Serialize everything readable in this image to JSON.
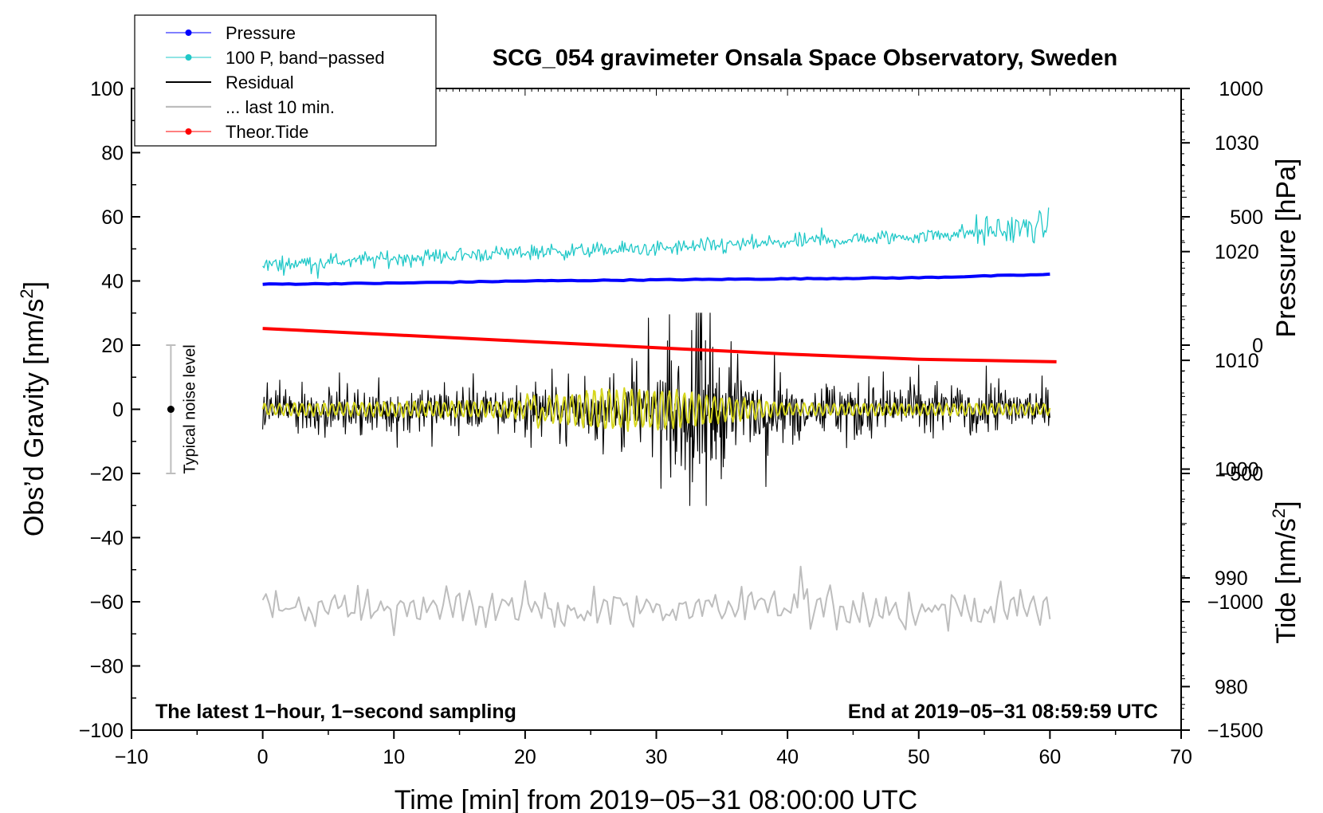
{
  "chart_data": {
    "type": "line",
    "title": "SCG_054 gravimeter Onsala Space Observatory, Sweden",
    "xlabel": "Time [min] from 2019−05−31 08:00:00 UTC",
    "ylabel_left": "Obs'd Gravity [nm/s2]",
    "ylabel_right_pressure": "Pressure [hPa]",
    "ylabel_right_tide": "Tide [nm/s2]",
    "xlim": [
      -10,
      70
    ],
    "ylim": [
      -100,
      100
    ],
    "x_ticks": [
      "−10",
      "0",
      "10",
      "20",
      "30",
      "40",
      "50",
      "60",
      "70"
    ],
    "y_ticks": [
      "−100",
      "−80",
      "−60",
      "−40",
      "−20",
      "0",
      "20",
      "40",
      "60",
      "80",
      "100"
    ],
    "pressure_axis": {
      "range_hPa": [
        976,
        1035
      ],
      "ticks": [
        "980",
        "990",
        "1000",
        "1010",
        "1020",
        "1030"
      ]
    },
    "tide_axis": {
      "range_nms2": [
        -1500,
        1000
      ],
      "ticks": [
        "−1500",
        "−1000",
        "−500",
        "0",
        "500",
        "1000"
      ]
    },
    "legend": {
      "position": "top-left",
      "entries": [
        {
          "label": "Pressure",
          "color": "#0000ff",
          "marker": "dot"
        },
        {
          "label": "100 P, band−passed",
          "color": "#20c8c8",
          "marker": "dot"
        },
        {
          "label": "Residual",
          "color": "#000000",
          "marker": "none"
        },
        {
          "label": "... last 10 min.",
          "color": "#bdbdbd",
          "marker": "none"
        },
        {
          "label": "Theor.Tide",
          "color": "#ff0000",
          "marker": "dot"
        }
      ]
    },
    "series": [
      {
        "name": "Pressure",
        "axis": "pressure_hPa",
        "x": [
          0,
          10,
          20,
          30,
          40,
          50,
          60
        ],
        "values": [
          1017.0,
          1017.1,
          1017.3,
          1017.4,
          1017.5,
          1017.6,
          1017.9
        ]
      },
      {
        "name": "100 P, band−passed",
        "axis": "gravity_nms2",
        "x": [
          0,
          10,
          20,
          30,
          40,
          50,
          60
        ],
        "values": [
          45,
          47,
          49,
          50,
          52,
          54,
          57
        ]
      },
      {
        "name": "Residual",
        "axis": "gravity_nms2",
        "x": [
          0,
          10,
          20,
          25,
          30,
          33,
          35,
          40,
          50,
          60
        ],
        "values": [
          0,
          0,
          0,
          0,
          0,
          0,
          0,
          0,
          0,
          0
        ],
        "envelope": [
          7,
          7,
          8,
          9,
          15,
          30,
          18,
          9,
          8,
          7
        ]
      },
      {
        "name": "Residual (filtered, yellow)",
        "axis": "gravity_nms2",
        "x": [
          0,
          20,
          26,
          30,
          34,
          40,
          60
        ],
        "values": [
          0,
          0,
          0,
          0,
          0,
          0,
          0
        ],
        "envelope": [
          2,
          3,
          7,
          7,
          5,
          2,
          2
        ]
      },
      {
        "name": "... last 10 min.",
        "axis": "gravity_nms2",
        "x": [
          0,
          10,
          20,
          30,
          40,
          50,
          60
        ],
        "values": [
          -62,
          -62,
          -62,
          -62,
          -62,
          -62,
          -62
        ],
        "envelope": [
          5,
          5,
          5,
          5,
          5,
          5,
          5
        ]
      },
      {
        "name": "Theor.Tide",
        "axis": "tide_nms2",
        "x": [
          0,
          10,
          20,
          30,
          40,
          50,
          60.5
        ],
        "values": [
          65,
          40,
          15,
          -10,
          -35,
          -55,
          -65
        ]
      }
    ],
    "noise_bar": {
      "label": "Typical noise level",
      "x": -7,
      "center": 0,
      "range": [
        -20,
        20
      ]
    },
    "annotations": {
      "bottom_left": "The latest 1−hour, 1−second sampling",
      "bottom_right": "End at 2019−05−31 08:59:59 UTC"
    }
  }
}
